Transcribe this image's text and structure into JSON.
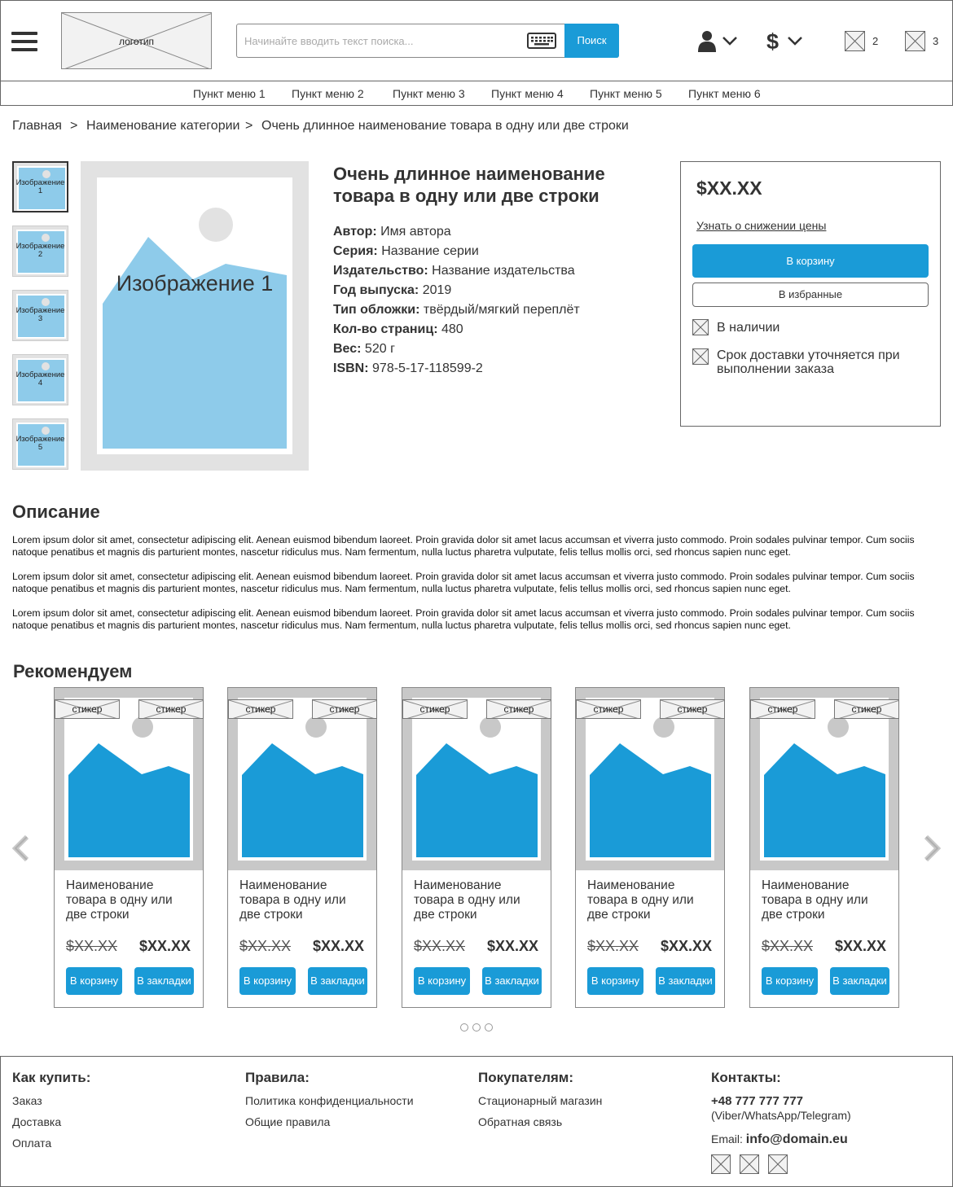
{
  "header": {
    "logo_label": "логотип",
    "search": {
      "placeholder": "Начинайте вводить текст поиска...",
      "button": "Поиск"
    },
    "counters": {
      "compare": "2",
      "cart": "3"
    }
  },
  "menu": [
    "Пункт меню 1",
    "Пункт меню 2",
    "Пункт меню 3",
    "Пункт меню 4",
    "Пункт меню 5",
    "Пункт меню 6"
  ],
  "breadcrumb": {
    "home": "Главная",
    "sep": ">",
    "category": "Наименование категории",
    "current": "Очень длинное наименование товара в одну или две строки"
  },
  "gallery": {
    "thumbs": [
      "Изображение 1",
      "Изображение 2",
      "Изображение 3",
      "Изображение 4",
      "Изображение 5"
    ],
    "main_label": "Изображение 1"
  },
  "product": {
    "title": "Очень длинное наименование товара в одну или две строки",
    "attributes": [
      {
        "label": "Автор:",
        "value": "Имя автора"
      },
      {
        "label": "Серия:",
        "value": "Название серии"
      },
      {
        "label": "Издательство:",
        "value": "Название издательства"
      },
      {
        "label": "Год выпуска:",
        "value": "2019"
      },
      {
        "label": "Тип обложки:",
        "value": "твёрдый/мягкий переплёт"
      },
      {
        "label": "Кол-во страниц:",
        "value": "480"
      },
      {
        "label": "Вес:",
        "value": "520 г"
      },
      {
        "label": "ISBN:",
        "value": "978-5-17-118599-2"
      }
    ]
  },
  "buybox": {
    "price": "$XX.XX",
    "price_drop_link": "Узнать о снижении цены",
    "cart_button": "В корзину",
    "fav_button": "В избранные",
    "availability": "В наличии",
    "delivery": "Срок доставки уточняется при выполнении заказа"
  },
  "description": {
    "heading": "Описание",
    "paragraphs": [
      "Lorem ipsum dolor sit amet, consectetur adipiscing elit. Aenean euismod bibendum laoreet. Proin gravida dolor sit amet lacus accumsan et viverra justo commodo. Proin sodales pulvinar tempor. Cum sociis natoque penatibus et magnis dis parturient montes, nascetur ridiculus mus. Nam fermentum, nulla luctus pharetra vulputate, felis tellus mollis orci, sed rhoncus sapien nunc eget.",
      "Lorem ipsum dolor sit amet, consectetur adipiscing elit. Aenean euismod bibendum laoreet. Proin gravida dolor sit amet lacus accumsan et viverra justo commodo. Proin sodales pulvinar tempor. Cum sociis natoque penatibus et magnis dis parturient montes, nascetur ridiculus mus. Nam fermentum, nulla luctus pharetra vulputate, felis tellus mollis orci, sed rhoncus sapien nunc eget.",
      "Lorem ipsum dolor sit amet, consectetur adipiscing elit. Aenean euismod bibendum laoreet. Proin gravida dolor sit amet lacus accumsan et viverra justo commodo. Proin sodales pulvinar tempor. Cum sociis natoque penatibus et magnis dis parturient montes, nascetur ridiculus mus. Nam fermentum, nulla luctus pharetra vulputate, felis tellus mollis orci, sed rhoncus sapien nunc eget."
    ]
  },
  "recommended": {
    "heading": "Рекомендуем",
    "sticker": "стикер",
    "cards": [
      {
        "name": "Наименование товара в одну или две строки",
        "old_price": "$XX.XX",
        "price": "$XX.XX",
        "cart": "В корзину",
        "bookmark": "В закладки"
      },
      {
        "name": "Наименование товара в одну или две строки",
        "old_price": "$XX.XX",
        "price": "$XX.XX",
        "cart": "В корзину",
        "bookmark": "В закладки"
      },
      {
        "name": "Наименование товара в одну или две строки",
        "old_price": "$XX.XX",
        "price": "$XX.XX",
        "cart": "В корзину",
        "bookmark": "В закладки"
      },
      {
        "name": "Наименование товара в одну или две строки",
        "old_price": "$XX.XX",
        "price": "$XX.XX",
        "cart": "В корзину",
        "bookmark": "В закладки"
      },
      {
        "name": "Наименование товара в одну или две строки",
        "old_price": "$XX.XX",
        "price": "$XX.XX",
        "cart": "В корзину",
        "bookmark": "В закладки"
      }
    ]
  },
  "footer": {
    "how_to_buy": {
      "heading": "Как купить:",
      "links": [
        "Заказ",
        "Доставка",
        "Оплата"
      ]
    },
    "rules": {
      "heading": "Правила:",
      "links": [
        "Политика конфиденциальности",
        "Общие правила"
      ]
    },
    "customers": {
      "heading": "Покупателям:",
      "links": [
        "Стационарный магазин",
        "Обратная связь"
      ]
    },
    "contacts": {
      "heading": "Контакты:",
      "phone": "+48 777 777 777",
      "messengers": "(Viber/WhatsApp/Telegram)",
      "email_label": "Email:",
      "email": "info@domain.eu"
    }
  },
  "colors": {
    "accent": "#1a9bd7",
    "image_light": "#8ecbea",
    "image_dark": "#1a9bd7",
    "placeholder_gray": "#e2e2e2"
  }
}
